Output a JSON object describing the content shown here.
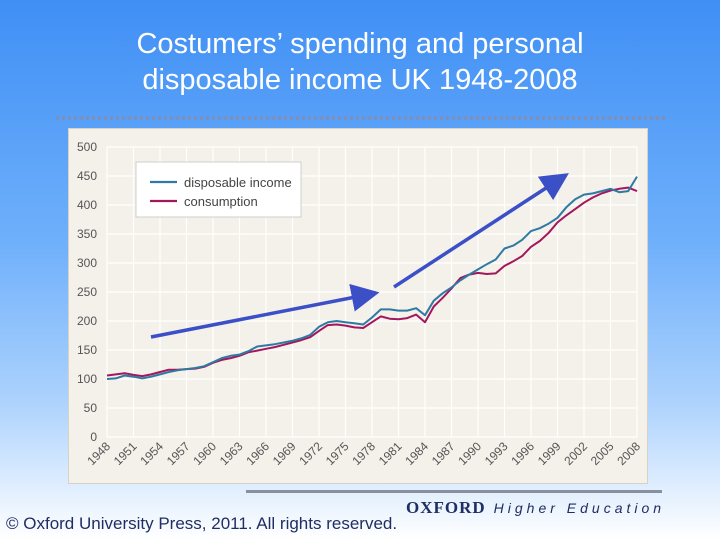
{
  "slide": {
    "title_lines": [
      "Costumers’ spending and personal",
      "disposable income UK 1948-2008"
    ],
    "copyright": "© Oxford University Press, 2011. All rights reserved.",
    "publisher_name": "OXFORD",
    "publisher_sub": "Higher Education"
  },
  "colors": {
    "income": "#2e7aa3",
    "consumption": "#a3175c",
    "trend_arrow": "#3b4fc7",
    "grid": "#ffffff",
    "plot_bg": "#f4f0ea"
  },
  "chart_data": {
    "type": "line",
    "title": "",
    "xlabel": "",
    "ylabel": "",
    "ylim": [
      0,
      500
    ],
    "yticks": [
      0,
      50,
      100,
      150,
      200,
      250,
      300,
      350,
      400,
      450,
      500
    ],
    "xlim": [
      1948,
      2008
    ],
    "xticks": [
      1948,
      1951,
      1954,
      1957,
      1960,
      1963,
      1966,
      1969,
      1972,
      1975,
      1978,
      1981,
      1984,
      1987,
      1990,
      1993,
      1996,
      1999,
      2002,
      2005,
      2008
    ],
    "grid": true,
    "legend_position": "top-left",
    "x": [
      1948,
      1949,
      1950,
      1951,
      1952,
      1953,
      1954,
      1955,
      1956,
      1957,
      1958,
      1959,
      1960,
      1961,
      1962,
      1963,
      1964,
      1965,
      1966,
      1967,
      1968,
      1969,
      1970,
      1971,
      1972,
      1973,
      1974,
      1975,
      1976,
      1977,
      1978,
      1979,
      1980,
      1981,
      1982,
      1983,
      1984,
      1985,
      1986,
      1987,
      1988,
      1989,
      1990,
      1991,
      1992,
      1993,
      1994,
      1995,
      1996,
      1997,
      1998,
      1999,
      2000,
      2001,
      2002,
      2003,
      2004,
      2005,
      2006,
      2007,
      2008
    ],
    "series": [
      {
        "name": "disposable income",
        "values": [
          100,
          101,
          106,
          104,
          101,
          104,
          108,
          112,
          115,
          117,
          119,
          122,
          129,
          136,
          140,
          142,
          148,
          156,
          158,
          160,
          163,
          166,
          170,
          176,
          190,
          198,
          200,
          198,
          196,
          194,
          206,
          220,
          220,
          218,
          218,
          222,
          210,
          235,
          248,
          258,
          270,
          280,
          289,
          298,
          306,
          325,
          330,
          340,
          355,
          360,
          368,
          378,
          396,
          410,
          418,
          420,
          424,
          428,
          422,
          424,
          449
        ]
      },
      {
        "name": "consumption",
        "values": [
          106,
          108,
          110,
          107,
          105,
          108,
          112,
          116,
          116,
          117,
          118,
          121,
          128,
          133,
          136,
          140,
          146,
          149,
          152,
          155,
          159,
          163,
          167,
          172,
          183,
          193,
          194,
          192,
          189,
          188,
          198,
          208,
          204,
          203,
          205,
          211,
          198,
          225,
          240,
          256,
          274,
          280,
          283,
          281,
          282,
          295,
          303,
          312,
          328,
          338,
          352,
          370,
          382,
          393,
          404,
          413,
          420,
          425,
          428,
          430,
          424
        ]
      }
    ]
  }
}
